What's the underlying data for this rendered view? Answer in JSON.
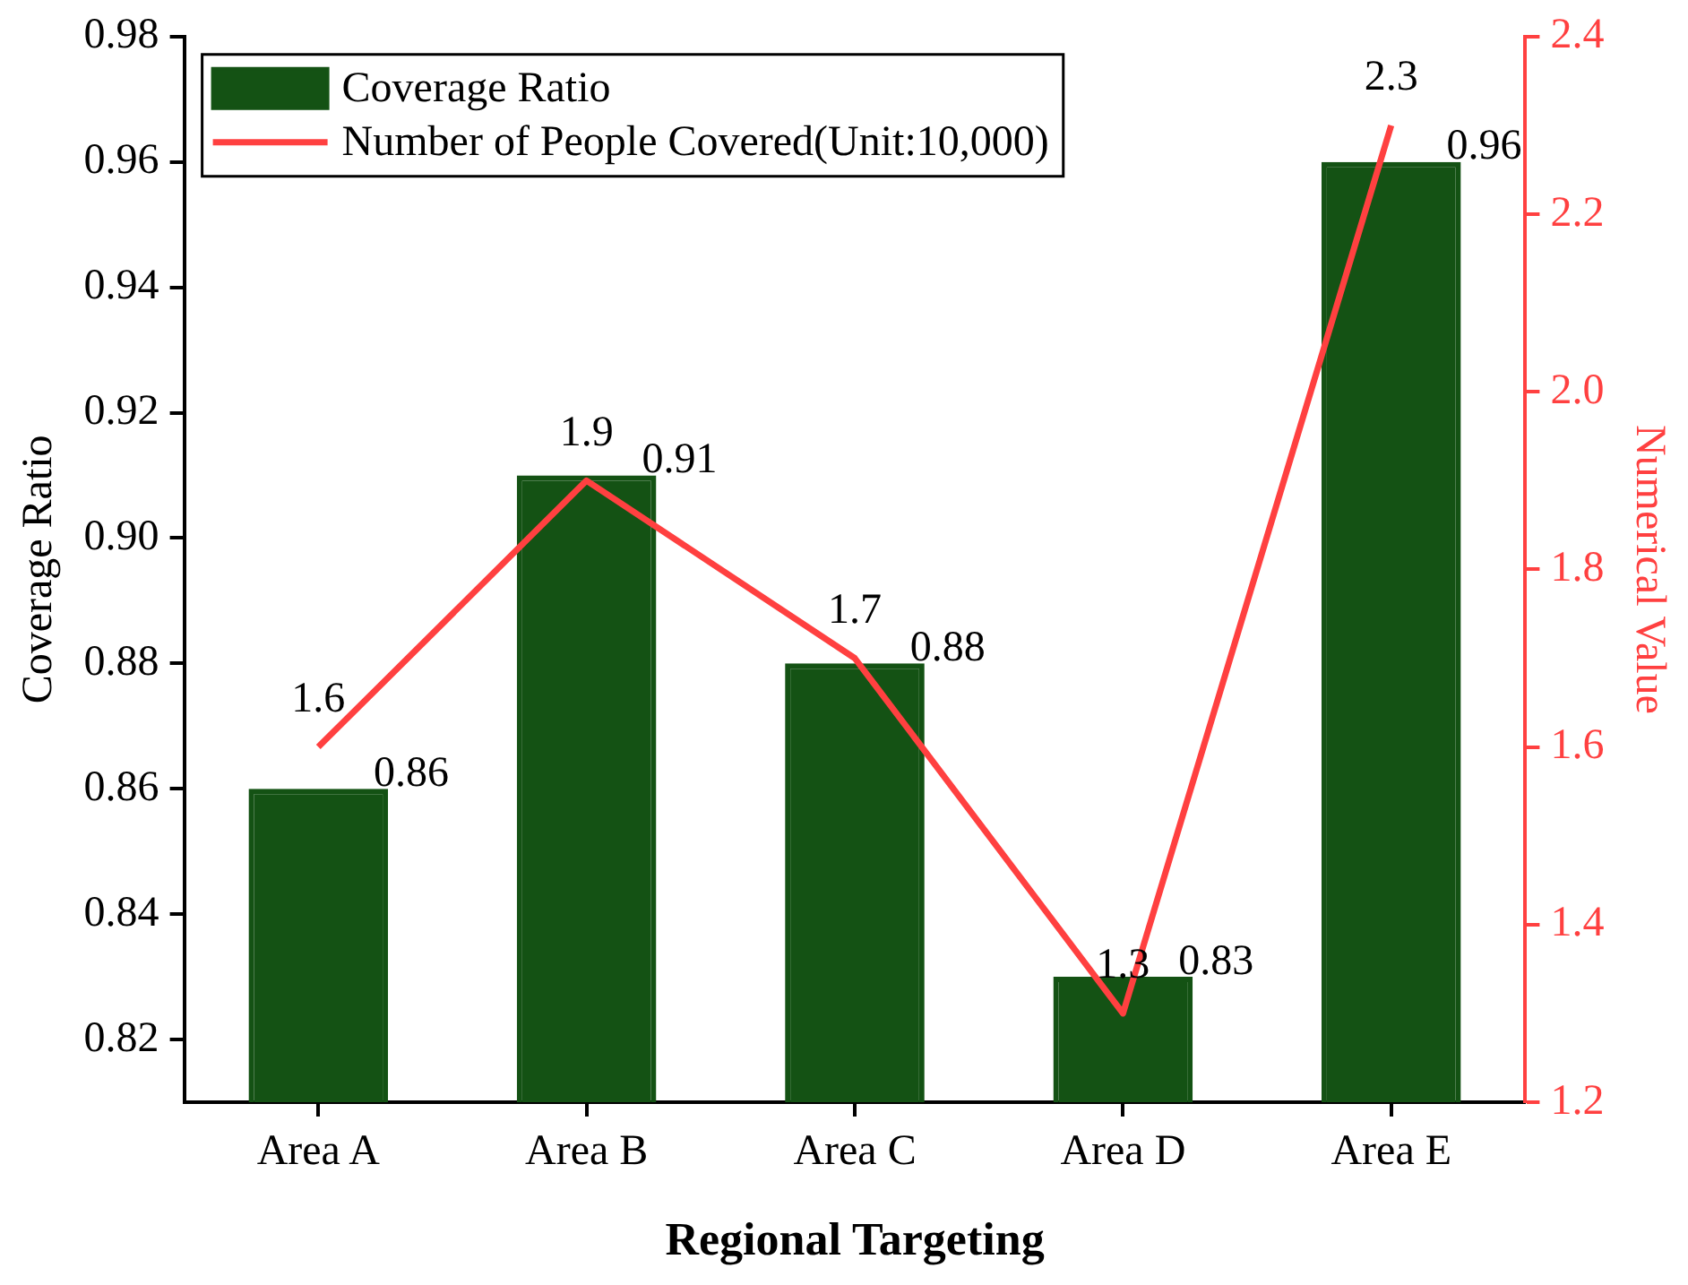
{
  "chart_data": {
    "type": "bar",
    "xlabel": "Regional Targeting",
    "ylabel": "Coverage Ratio",
    "y2label": "Numerical Value",
    "categories": [
      "Area A",
      "Area B",
      "Area C",
      "Area D",
      "Area E"
    ],
    "series": [
      {
        "name": "Coverage Ratio",
        "color": "#145214",
        "values": [
          0.86,
          0.91,
          0.88,
          0.83,
          0.96
        ]
      },
      {
        "name": "Number of People Covered(Unit:10,000)",
        "type": "line",
        "axis": "y2",
        "color": "#ff4040",
        "values": [
          1.6,
          1.9,
          1.7,
          1.3,
          2.3
        ]
      }
    ],
    "ylim": [
      0.81,
      0.98
    ],
    "yticks": [
      0.82,
      0.84,
      0.86,
      0.88,
      {
        "value": 0.9,
        "label": "0.90"
      },
      0.92,
      0.94,
      0.96,
      0.98
    ],
    "y2lim": [
      1.2,
      2.4
    ],
    "y2ticks": [
      1.2,
      1.4,
      1.6,
      1.8,
      {
        "value": 2,
        "label": "2.0"
      },
      2.2,
      2.4
    ],
    "data_labels": true,
    "legend": "top left",
    "grid": false,
    "marker": "none",
    "line_style": "solid"
  }
}
